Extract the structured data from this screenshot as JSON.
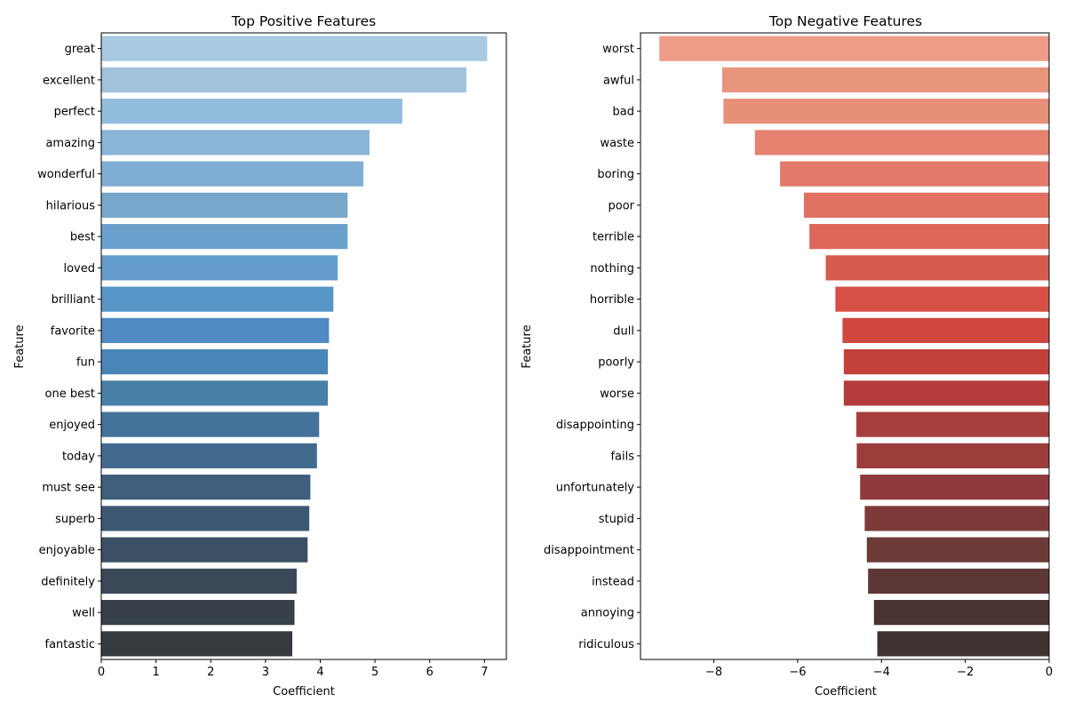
{
  "chart_data": [
    {
      "type": "bar",
      "orientation": "horizontal",
      "title": "Top Positive Features",
      "xlabel": "Coefficient",
      "ylabel": "Feature",
      "xlim": [
        0,
        7.4
      ],
      "xticks": [
        0,
        1,
        2,
        3,
        4,
        5,
        6,
        7
      ],
      "xtick_labels": [
        "0",
        "1",
        "2",
        "3",
        "4",
        "5",
        "6",
        "7"
      ],
      "grid": false,
      "palette": "blues_d",
      "colors": [
        "#a7c9e1",
        "#a0c2da",
        "#92bcdc",
        "#8ab4d8",
        "#81aed4",
        "#77a8cc",
        "#6ba2cd",
        "#649dcb",
        "#5796c6",
        "#4f8bc2",
        "#4986b7",
        "#4780a7",
        "#44729a",
        "#426a8f",
        "#405f7d",
        "#3d5872",
        "#3b5062",
        "#3a4858",
        "#374049",
        "#363b40"
      ],
      "categories": [
        "great",
        "excellent",
        "perfect",
        "amazing",
        "wonderful",
        "hilarious",
        "best",
        "loved",
        "brilliant",
        "favorite",
        "fun",
        "one best",
        "enjoyed",
        "today",
        "must see",
        "superb",
        "enjoyable",
        "definitely",
        "well",
        "fantastic"
      ],
      "values": [
        7.05,
        6.67,
        5.5,
        4.9,
        4.79,
        4.5,
        4.5,
        4.32,
        4.24,
        4.16,
        4.14,
        4.14,
        3.98,
        3.94,
        3.82,
        3.8,
        3.77,
        3.57,
        3.53,
        3.49
      ]
    },
    {
      "type": "bar",
      "orientation": "horizontal",
      "title": "Top Negative Features",
      "xlabel": "Coefficient",
      "ylabel": "Feature",
      "xlim": [
        -9.75,
        0
      ],
      "xticks": [
        -8,
        -6,
        -4,
        -2,
        0
      ],
      "xtick_labels": [
        "−8",
        "−6",
        "−4",
        "−2",
        "0"
      ],
      "grid": false,
      "palette": "reds_d",
      "colors": [
        "#ee9c87",
        "#e8957e",
        "#e88f79",
        "#e58270",
        "#e47a6c",
        "#df7062",
        "#dd665b",
        "#d65a4d",
        "#d65045",
        "#cf4740",
        "#c3413b",
        "#b53c3a",
        "#a63f3b",
        "#9c3d3b",
        "#8e393b",
        "#7d3a39",
        "#6c3a37",
        "#5c3735",
        "#4b3331",
        "#3e3330"
      ],
      "categories": [
        "worst",
        "awful",
        "bad",
        "waste",
        "boring",
        "poor",
        "terrible",
        "nothing",
        "horrible",
        "dull",
        "poorly",
        "worse",
        "disappointing",
        "fails",
        "unfortunately",
        "stupid",
        "disappointment",
        "instead",
        "annoying",
        "ridiculous"
      ],
      "values": [
        -9.3,
        -7.8,
        -7.77,
        -7.02,
        -6.42,
        -5.85,
        -5.72,
        -5.33,
        -5.1,
        -4.93,
        -4.9,
        -4.9,
        -4.6,
        -4.59,
        -4.51,
        -4.4,
        -4.35,
        -4.32,
        -4.18,
        -4.1
      ]
    }
  ]
}
